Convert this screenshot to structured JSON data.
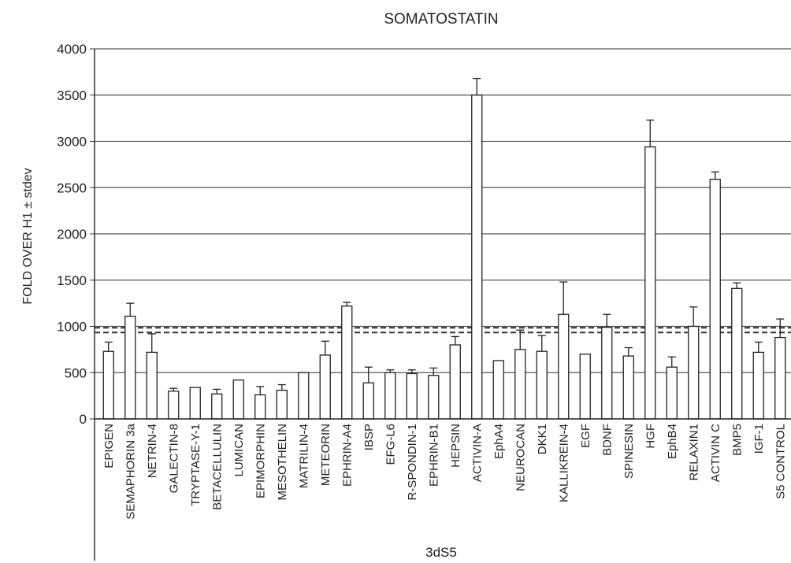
{
  "chart_data": {
    "type": "bar",
    "title": "SOMATOSTATIN",
    "xlabel": "3dS5",
    "ylabel": "FOLD OVER H1 ± stdev",
    "ylim": [
      0,
      4000
    ],
    "yticks": [
      0,
      500,
      1000,
      1500,
      2000,
      2500,
      3000,
      3500,
      4000
    ],
    "grid": true,
    "reference_line": 960,
    "categories": [
      "EPIGEN",
      "SEMAPHORIN 3a",
      "NETRIN-4",
      "GALECTIN-8",
      "TRYPTASE-Y-1",
      "BETACELLULIN",
      "LUMICAN",
      "EPIMORPHIN",
      "MESOTHELIN",
      "MATRILIN-4",
      "METEORIN",
      "EPHRIN-A4",
      "IBSP",
      "EFG-L6",
      "R-SPONDIN-1",
      "EPHRIN-B1",
      "HEPSIN",
      "ACTIVIN-A",
      "EphA4",
      "NEUROCAN",
      "DKK1",
      "KALLIKREIN-4",
      "EGF",
      "BDNF",
      "SPINESIN",
      "HGF",
      "EphB4",
      "RELAXIN1",
      "ACTIVIN C",
      "BMP5",
      "IGF-1",
      "S5 CONTROL"
    ],
    "values": [
      730,
      1110,
      720,
      300,
      340,
      270,
      420,
      260,
      310,
      500,
      690,
      1220,
      390,
      500,
      490,
      470,
      800,
      3500,
      630,
      750,
      730,
      1130,
      700,
      990,
      680,
      2940,
      560,
      1000,
      2590,
      1410,
      720,
      880
    ],
    "errors": [
      100,
      140,
      200,
      30,
      0,
      50,
      0,
      90,
      60,
      0,
      150,
      40,
      170,
      30,
      40,
      80,
      90,
      180,
      0,
      210,
      170,
      350,
      0,
      140,
      90,
      290,
      110,
      210,
      80,
      60,
      110,
      200
    ]
  }
}
